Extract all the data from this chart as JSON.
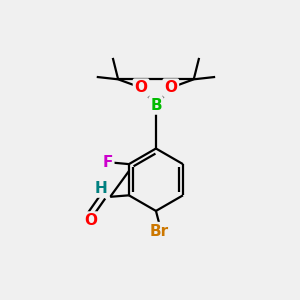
{
  "background_color": "#f0f0f0",
  "bond_color": "#000000",
  "bond_width": 1.6,
  "dbo": 0.07,
  "atom_colors": {
    "O": "#ff0000",
    "B": "#00bb00",
    "F": "#cc00cc",
    "Br": "#cc7700",
    "H_cho": "#008080",
    "O_cho": "#ff0000"
  },
  "font_size": 11
}
